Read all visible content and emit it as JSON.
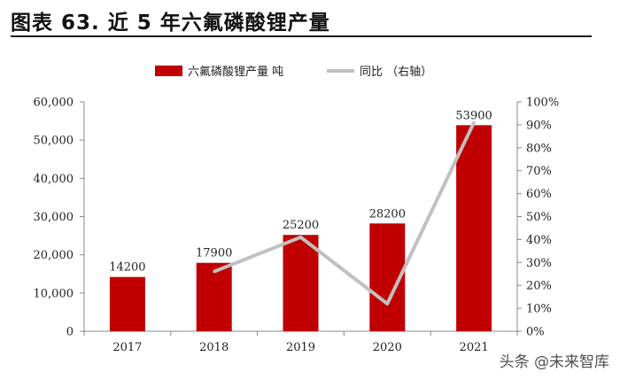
{
  "header": {
    "title": "图表 63. 近 5 年六氟磷酸锂产量"
  },
  "watermark": {
    "text": "头条 @未来智库"
  },
  "colors": {
    "bar": "#c00000",
    "line": "#c0c0c0"
  },
  "chart_data": {
    "type": "bar",
    "categories": [
      "2017",
      "2018",
      "2019",
      "2020",
      "2021"
    ],
    "series": [
      {
        "name": "六氟磷酸锂产量 吨",
        "type": "bar",
        "axis": "left",
        "values": [
          14200,
          17900,
          25200,
          28200,
          53900
        ]
      },
      {
        "name": "同比 （右轴）",
        "type": "line",
        "axis": "right",
        "values": [
          null,
          26,
          41,
          12,
          91
        ]
      }
    ],
    "data_labels": [
      "14200",
      "17900",
      "25200",
      "28200",
      "53900"
    ],
    "y_left": {
      "min": 0,
      "max": 60000,
      "ticks": [
        "0",
        "10,000",
        "20,000",
        "30,000",
        "40,000",
        "50,000",
        "60,000"
      ]
    },
    "y_right": {
      "min": 0,
      "max": 100,
      "ticks": [
        "0%",
        "10%",
        "20%",
        "30%",
        "40%",
        "50%",
        "60%",
        "70%",
        "80%",
        "90%",
        "100%"
      ]
    },
    "legend_position": "top-center",
    "grid": false
  }
}
